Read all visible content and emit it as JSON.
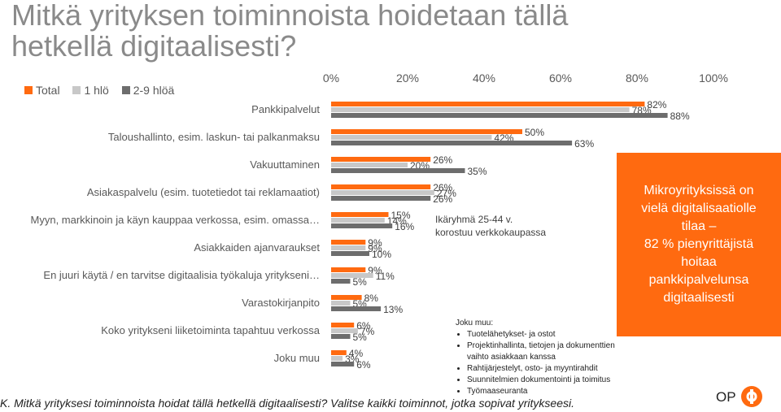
{
  "title": "Mitkä yrityksen toiminnoista hoidetaan tällä hetkellä digitaalisesti?",
  "chart_data": {
    "type": "bar",
    "orientation": "horizontal",
    "xlim": [
      0,
      100
    ],
    "x_ticks": [
      "0%",
      "20%",
      "40%",
      "60%",
      "80%",
      "100%"
    ],
    "categories": [
      "Pankkipalvelut",
      "Taloushallinto, esim. laskun- tai palkanmaksu",
      "Vakuuttaminen",
      "Asiakaspalvelu (esim. tuotetiedot tai reklamaatiot)",
      "Myyn, markkinoin ja käyn kauppaa verkossa, esim. omassa…",
      "Asiakkaiden ajanvaraukset",
      "En juuri käytä / en tarvitse digitaalisia työkaluja yritykseni…",
      "Varastokirjanpito",
      "Koko yritykseni liiketoiminta tapahtuu verkossa",
      "Joku muu"
    ],
    "series": [
      {
        "name": "Total",
        "color": "#ff6a10",
        "values": [
          82,
          50,
          26,
          26,
          15,
          9,
          9,
          8,
          6,
          4
        ]
      },
      {
        "name": "1 hlö",
        "color": "#c8c8c8",
        "values": [
          78,
          42,
          20,
          27,
          14,
          9,
          11,
          5,
          7,
          3
        ]
      },
      {
        "name": "2-9 hlöä",
        "color": "#6d6d6d",
        "values": [
          88,
          63,
          35,
          26,
          16,
          10,
          5,
          13,
          5,
          6
        ]
      }
    ],
    "legend_position": "top-left",
    "grid": false
  },
  "annotations": {
    "note_line1": "Ikäryhmä 25-44 v.",
    "note_line2": "korostuu verkkokaupassa"
  },
  "callout": {
    "line1": "Mikroyrityksissä on",
    "line2": "vielä digitalisaatiolle",
    "line3": "tilaa –",
    "line4": "82 % pienyrittäjistä",
    "line5": "hoitaa",
    "line6": "pankkipalvelunsa",
    "line7": "digitaalisesti"
  },
  "joku_muu": {
    "heading": "Joku muu:",
    "items": [
      "Tuotelähetykset- ja ostot",
      "Projektinhallinta, tietojen ja dokumenttien",
      "vaihto asiakkaan kanssa",
      "Rahtijärjestelyt, osto- ja myyntirahdit",
      "Suunnitelmien dokumentointi ja toimitus",
      "Työmaaseuranta"
    ]
  },
  "question": "K. Mitkä yrityksesi toiminnoista hoidat tällä hetkellä digitaalisesti? Valitse kaikki toiminnot, jotka sopivat yritykseesi.",
  "logo_text": "OP"
}
